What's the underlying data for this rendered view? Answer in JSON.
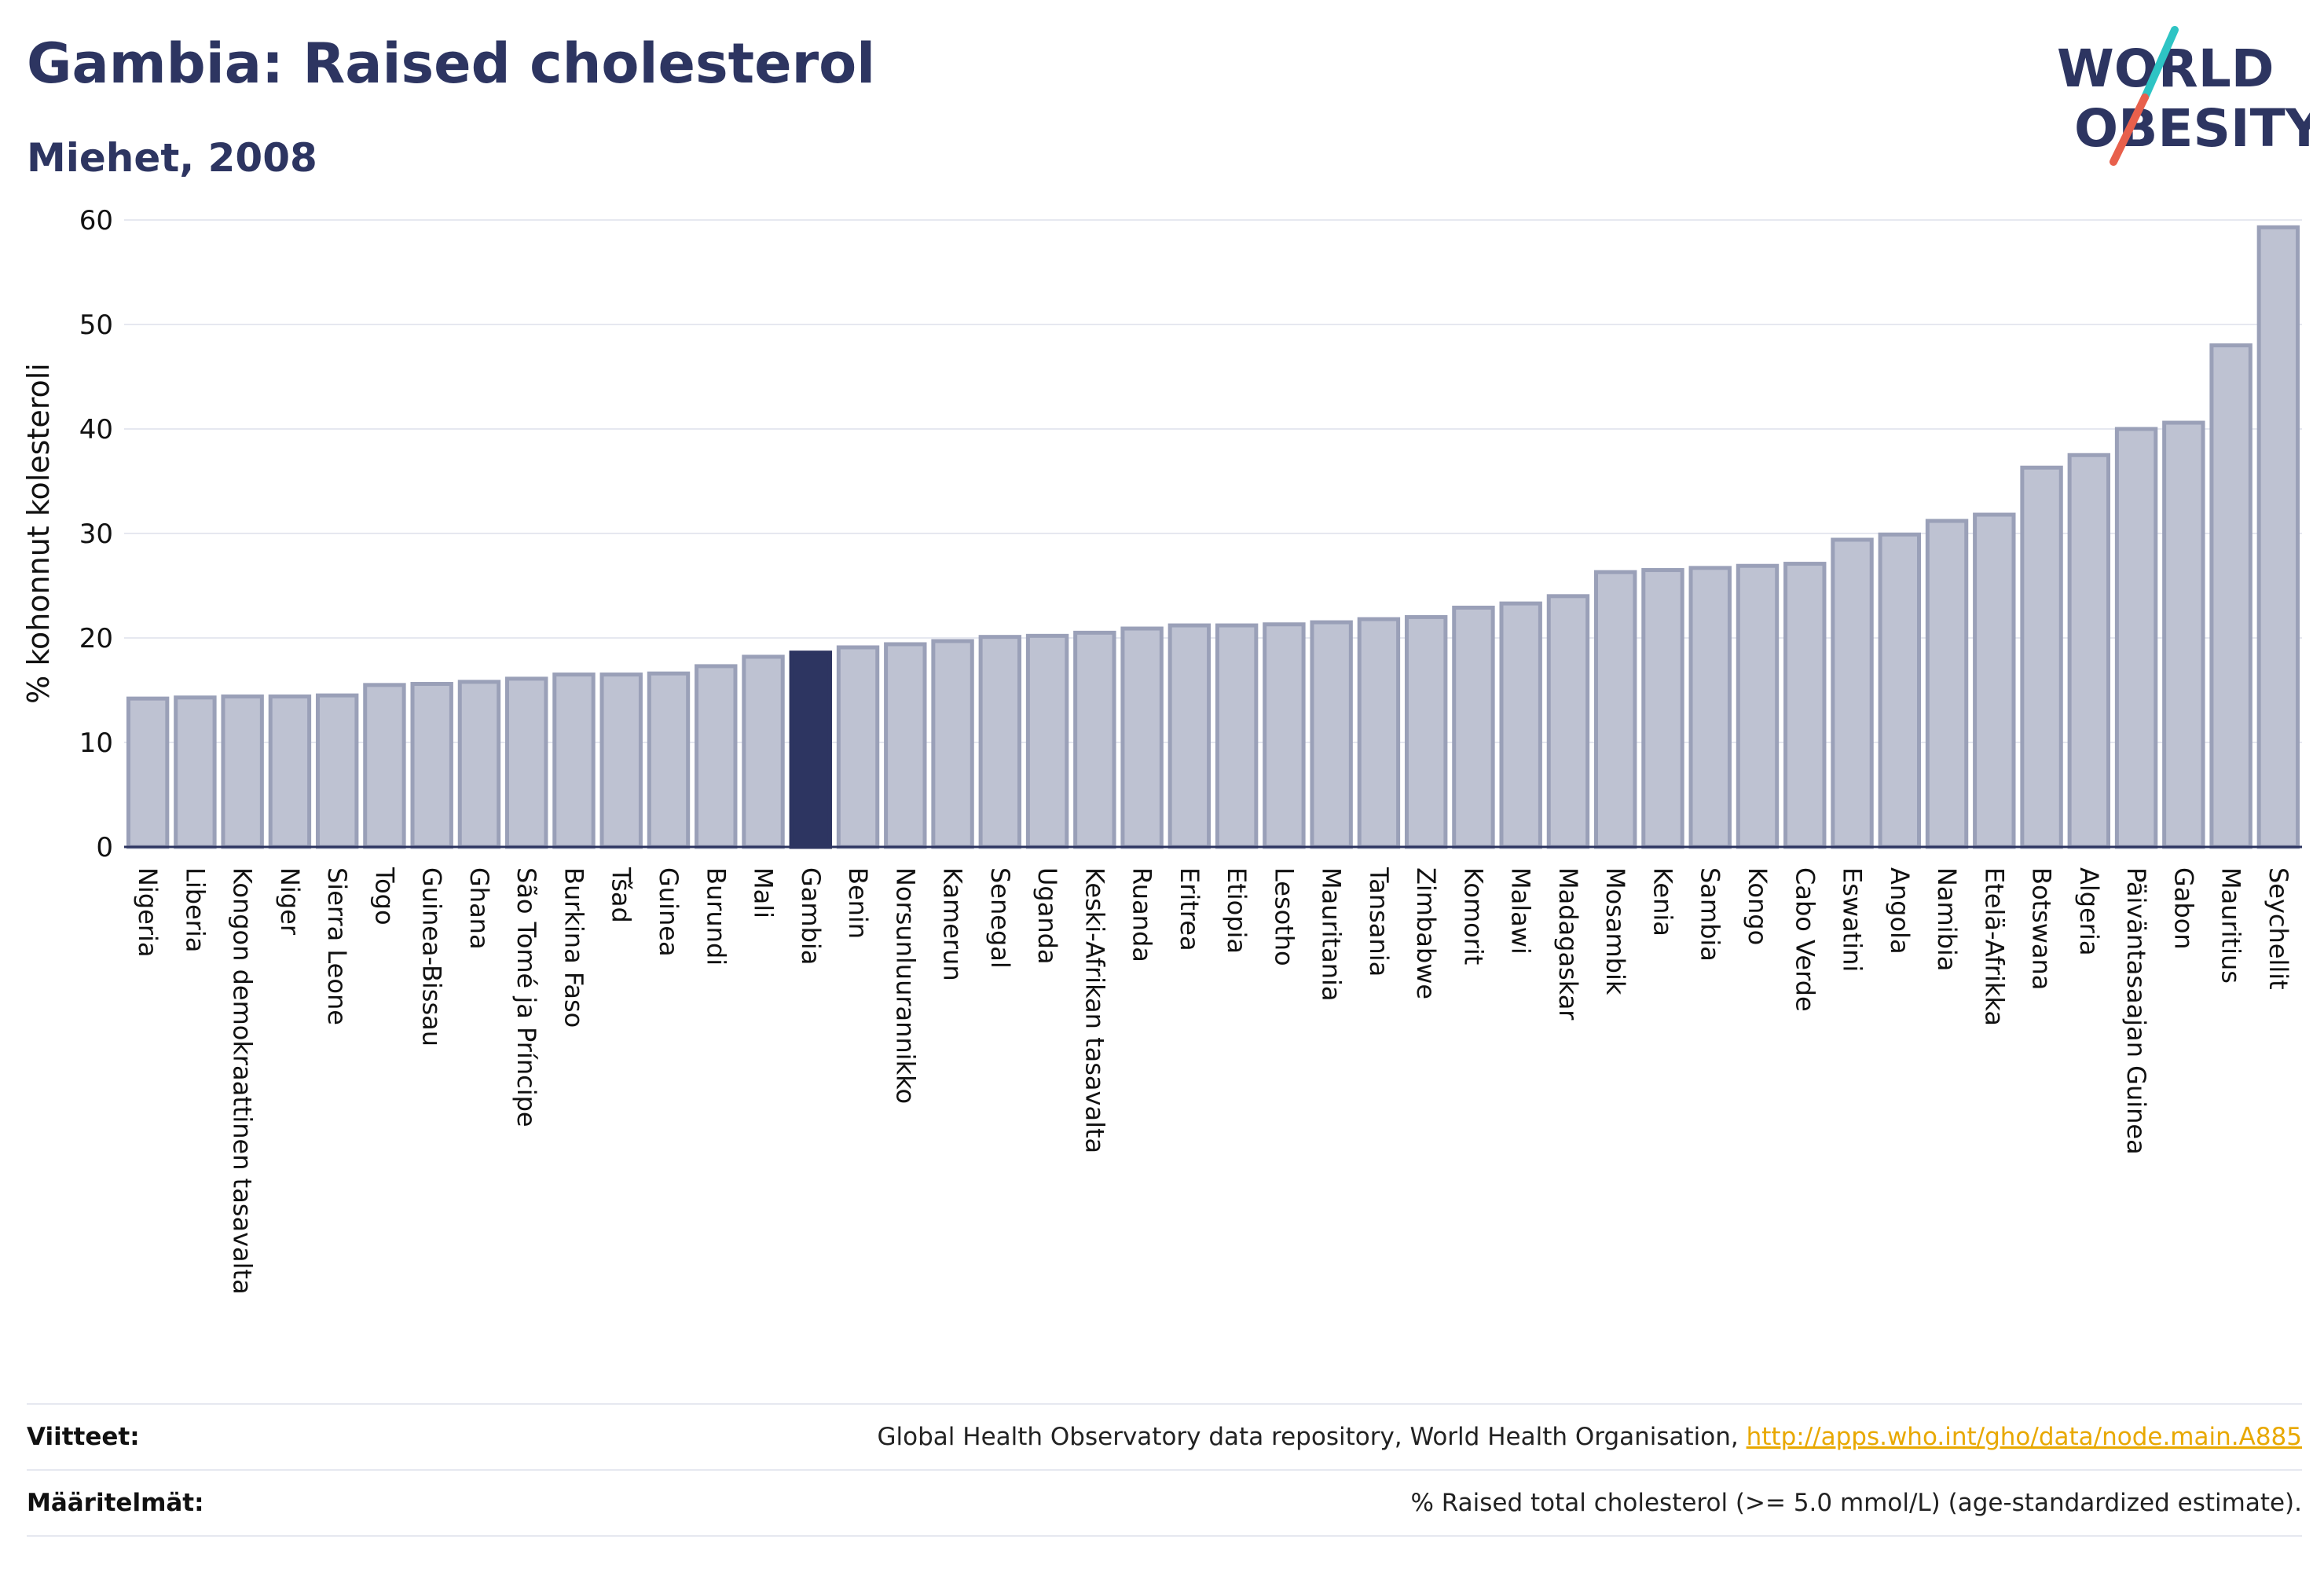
{
  "header": {
    "title": "Gambia: Raised cholesterol",
    "subtitle": "Miehet, 2008"
  },
  "logo": {
    "line1": "WORLD",
    "line2": "OBESITY",
    "accent_colors": [
      "#2ec4c4",
      "#e8604c"
    ]
  },
  "colors": {
    "bar_default": "#bec2d2",
    "bar_border": "#9aa0b8",
    "bar_highlight": "#2d3561",
    "axis": "#2d3561",
    "grid": "#e6e8f0"
  },
  "chart_data": {
    "type": "bar",
    "ylabel": "% kohonnut kolesteroli",
    "ylim": [
      0,
      60
    ],
    "yticks": [
      0,
      10,
      20,
      30,
      40,
      50,
      60
    ],
    "grid": true,
    "highlight": "Gambia",
    "categories": [
      "Nigeria",
      "Liberia",
      "Kongon demokraattinen tasavalta",
      "Niger",
      "Sierra Leone",
      "Togo",
      "Guinea-Bissau",
      "Ghana",
      "São Tomé ja Príncipe",
      "Burkina Faso",
      "Tšad",
      "Guinea",
      "Burundi",
      "Mali",
      "Gambia",
      "Benin",
      "Norsunluurannikko",
      "Kamerun",
      "Senegal",
      "Uganda",
      "Keski-Afrikan tasavalta",
      "Ruanda",
      "Eritrea",
      "Etiopia",
      "Lesotho",
      "Mauritania",
      "Tansania",
      "Zimbabwe",
      "Komorit",
      "Malawi",
      "Madagaskar",
      "Mosambik",
      "Kenia",
      "Sambia",
      "Kongo",
      "Cabo Verde",
      "Eswatini",
      "Angola",
      "Namibia",
      "Etelä-Afrikka",
      "Botswana",
      "Algeria",
      "Päiväntasaajan Guinea",
      "Gabon",
      "Mauritius",
      "Seychellit"
    ],
    "values": [
      14.2,
      14.3,
      14.4,
      14.4,
      14.5,
      15.5,
      15.6,
      15.8,
      16.1,
      16.5,
      16.5,
      16.6,
      17.3,
      18.2,
      18.6,
      19.1,
      19.4,
      19.7,
      20.1,
      20.2,
      20.5,
      20.9,
      21.2,
      21.2,
      21.3,
      21.5,
      21.8,
      22.0,
      22.9,
      23.3,
      24.0,
      26.3,
      26.5,
      26.7,
      26.9,
      27.1,
      29.4,
      29.9,
      31.2,
      31.8,
      36.3,
      37.5,
      40.0,
      40.6,
      48.0,
      59.3
    ]
  },
  "footer": {
    "sources_label": "Viitteet:",
    "sources_text": "Global Health Observatory data repository, World Health Organisation, ",
    "sources_link": "http://apps.who.int/gho/data/node.main.A885",
    "definitions_label": "Määritelmät:",
    "definitions_text": "% Raised total cholesterol (>= 5.0 mmol/L) (age-standardized estimate)."
  }
}
